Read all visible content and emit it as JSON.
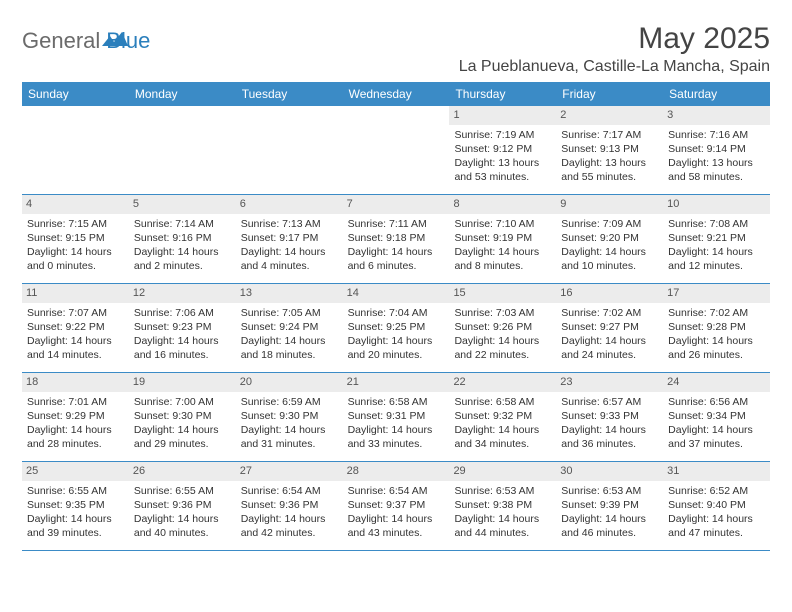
{
  "logo": {
    "text_general": "General",
    "text_blue": "Blue"
  },
  "title": "May 2025",
  "location": "La Pueblanueva, Castille-La Mancha, Spain",
  "colors": {
    "header_bg": "#3b8bc6",
    "header_text": "#ffffff",
    "daynum_bg": "#ececec",
    "body_text": "#333333",
    "rule": "#3b8bc6",
    "logo_gray": "#6b6b6b",
    "logo_blue": "#2b7fbc"
  },
  "day_names": [
    "Sunday",
    "Monday",
    "Tuesday",
    "Wednesday",
    "Thursday",
    "Friday",
    "Saturday"
  ],
  "weeks": [
    [
      null,
      null,
      null,
      null,
      {
        "n": "1",
        "sunrise": "Sunrise: 7:19 AM",
        "sunset": "Sunset: 9:12 PM",
        "daylight1": "Daylight: 13 hours",
        "daylight2": "and 53 minutes."
      },
      {
        "n": "2",
        "sunrise": "Sunrise: 7:17 AM",
        "sunset": "Sunset: 9:13 PM",
        "daylight1": "Daylight: 13 hours",
        "daylight2": "and 55 minutes."
      },
      {
        "n": "3",
        "sunrise": "Sunrise: 7:16 AM",
        "sunset": "Sunset: 9:14 PM",
        "daylight1": "Daylight: 13 hours",
        "daylight2": "and 58 minutes."
      }
    ],
    [
      {
        "n": "4",
        "sunrise": "Sunrise: 7:15 AM",
        "sunset": "Sunset: 9:15 PM",
        "daylight1": "Daylight: 14 hours",
        "daylight2": "and 0 minutes."
      },
      {
        "n": "5",
        "sunrise": "Sunrise: 7:14 AM",
        "sunset": "Sunset: 9:16 PM",
        "daylight1": "Daylight: 14 hours",
        "daylight2": "and 2 minutes."
      },
      {
        "n": "6",
        "sunrise": "Sunrise: 7:13 AM",
        "sunset": "Sunset: 9:17 PM",
        "daylight1": "Daylight: 14 hours",
        "daylight2": "and 4 minutes."
      },
      {
        "n": "7",
        "sunrise": "Sunrise: 7:11 AM",
        "sunset": "Sunset: 9:18 PM",
        "daylight1": "Daylight: 14 hours",
        "daylight2": "and 6 minutes."
      },
      {
        "n": "8",
        "sunrise": "Sunrise: 7:10 AM",
        "sunset": "Sunset: 9:19 PM",
        "daylight1": "Daylight: 14 hours",
        "daylight2": "and 8 minutes."
      },
      {
        "n": "9",
        "sunrise": "Sunrise: 7:09 AM",
        "sunset": "Sunset: 9:20 PM",
        "daylight1": "Daylight: 14 hours",
        "daylight2": "and 10 minutes."
      },
      {
        "n": "10",
        "sunrise": "Sunrise: 7:08 AM",
        "sunset": "Sunset: 9:21 PM",
        "daylight1": "Daylight: 14 hours",
        "daylight2": "and 12 minutes."
      }
    ],
    [
      {
        "n": "11",
        "sunrise": "Sunrise: 7:07 AM",
        "sunset": "Sunset: 9:22 PM",
        "daylight1": "Daylight: 14 hours",
        "daylight2": "and 14 minutes."
      },
      {
        "n": "12",
        "sunrise": "Sunrise: 7:06 AM",
        "sunset": "Sunset: 9:23 PM",
        "daylight1": "Daylight: 14 hours",
        "daylight2": "and 16 minutes."
      },
      {
        "n": "13",
        "sunrise": "Sunrise: 7:05 AM",
        "sunset": "Sunset: 9:24 PM",
        "daylight1": "Daylight: 14 hours",
        "daylight2": "and 18 minutes."
      },
      {
        "n": "14",
        "sunrise": "Sunrise: 7:04 AM",
        "sunset": "Sunset: 9:25 PM",
        "daylight1": "Daylight: 14 hours",
        "daylight2": "and 20 minutes."
      },
      {
        "n": "15",
        "sunrise": "Sunrise: 7:03 AM",
        "sunset": "Sunset: 9:26 PM",
        "daylight1": "Daylight: 14 hours",
        "daylight2": "and 22 minutes."
      },
      {
        "n": "16",
        "sunrise": "Sunrise: 7:02 AM",
        "sunset": "Sunset: 9:27 PM",
        "daylight1": "Daylight: 14 hours",
        "daylight2": "and 24 minutes."
      },
      {
        "n": "17",
        "sunrise": "Sunrise: 7:02 AM",
        "sunset": "Sunset: 9:28 PM",
        "daylight1": "Daylight: 14 hours",
        "daylight2": "and 26 minutes."
      }
    ],
    [
      {
        "n": "18",
        "sunrise": "Sunrise: 7:01 AM",
        "sunset": "Sunset: 9:29 PM",
        "daylight1": "Daylight: 14 hours",
        "daylight2": "and 28 minutes."
      },
      {
        "n": "19",
        "sunrise": "Sunrise: 7:00 AM",
        "sunset": "Sunset: 9:30 PM",
        "daylight1": "Daylight: 14 hours",
        "daylight2": "and 29 minutes."
      },
      {
        "n": "20",
        "sunrise": "Sunrise: 6:59 AM",
        "sunset": "Sunset: 9:30 PM",
        "daylight1": "Daylight: 14 hours",
        "daylight2": "and 31 minutes."
      },
      {
        "n": "21",
        "sunrise": "Sunrise: 6:58 AM",
        "sunset": "Sunset: 9:31 PM",
        "daylight1": "Daylight: 14 hours",
        "daylight2": "and 33 minutes."
      },
      {
        "n": "22",
        "sunrise": "Sunrise: 6:58 AM",
        "sunset": "Sunset: 9:32 PM",
        "daylight1": "Daylight: 14 hours",
        "daylight2": "and 34 minutes."
      },
      {
        "n": "23",
        "sunrise": "Sunrise: 6:57 AM",
        "sunset": "Sunset: 9:33 PM",
        "daylight1": "Daylight: 14 hours",
        "daylight2": "and 36 minutes."
      },
      {
        "n": "24",
        "sunrise": "Sunrise: 6:56 AM",
        "sunset": "Sunset: 9:34 PM",
        "daylight1": "Daylight: 14 hours",
        "daylight2": "and 37 minutes."
      }
    ],
    [
      {
        "n": "25",
        "sunrise": "Sunrise: 6:55 AM",
        "sunset": "Sunset: 9:35 PM",
        "daylight1": "Daylight: 14 hours",
        "daylight2": "and 39 minutes."
      },
      {
        "n": "26",
        "sunrise": "Sunrise: 6:55 AM",
        "sunset": "Sunset: 9:36 PM",
        "daylight1": "Daylight: 14 hours",
        "daylight2": "and 40 minutes."
      },
      {
        "n": "27",
        "sunrise": "Sunrise: 6:54 AM",
        "sunset": "Sunset: 9:36 PM",
        "daylight1": "Daylight: 14 hours",
        "daylight2": "and 42 minutes."
      },
      {
        "n": "28",
        "sunrise": "Sunrise: 6:54 AM",
        "sunset": "Sunset: 9:37 PM",
        "daylight1": "Daylight: 14 hours",
        "daylight2": "and 43 minutes."
      },
      {
        "n": "29",
        "sunrise": "Sunrise: 6:53 AM",
        "sunset": "Sunset: 9:38 PM",
        "daylight1": "Daylight: 14 hours",
        "daylight2": "and 44 minutes."
      },
      {
        "n": "30",
        "sunrise": "Sunrise: 6:53 AM",
        "sunset": "Sunset: 9:39 PM",
        "daylight1": "Daylight: 14 hours",
        "daylight2": "and 46 minutes."
      },
      {
        "n": "31",
        "sunrise": "Sunrise: 6:52 AM",
        "sunset": "Sunset: 9:40 PM",
        "daylight1": "Daylight: 14 hours",
        "daylight2": "and 47 minutes."
      }
    ]
  ]
}
